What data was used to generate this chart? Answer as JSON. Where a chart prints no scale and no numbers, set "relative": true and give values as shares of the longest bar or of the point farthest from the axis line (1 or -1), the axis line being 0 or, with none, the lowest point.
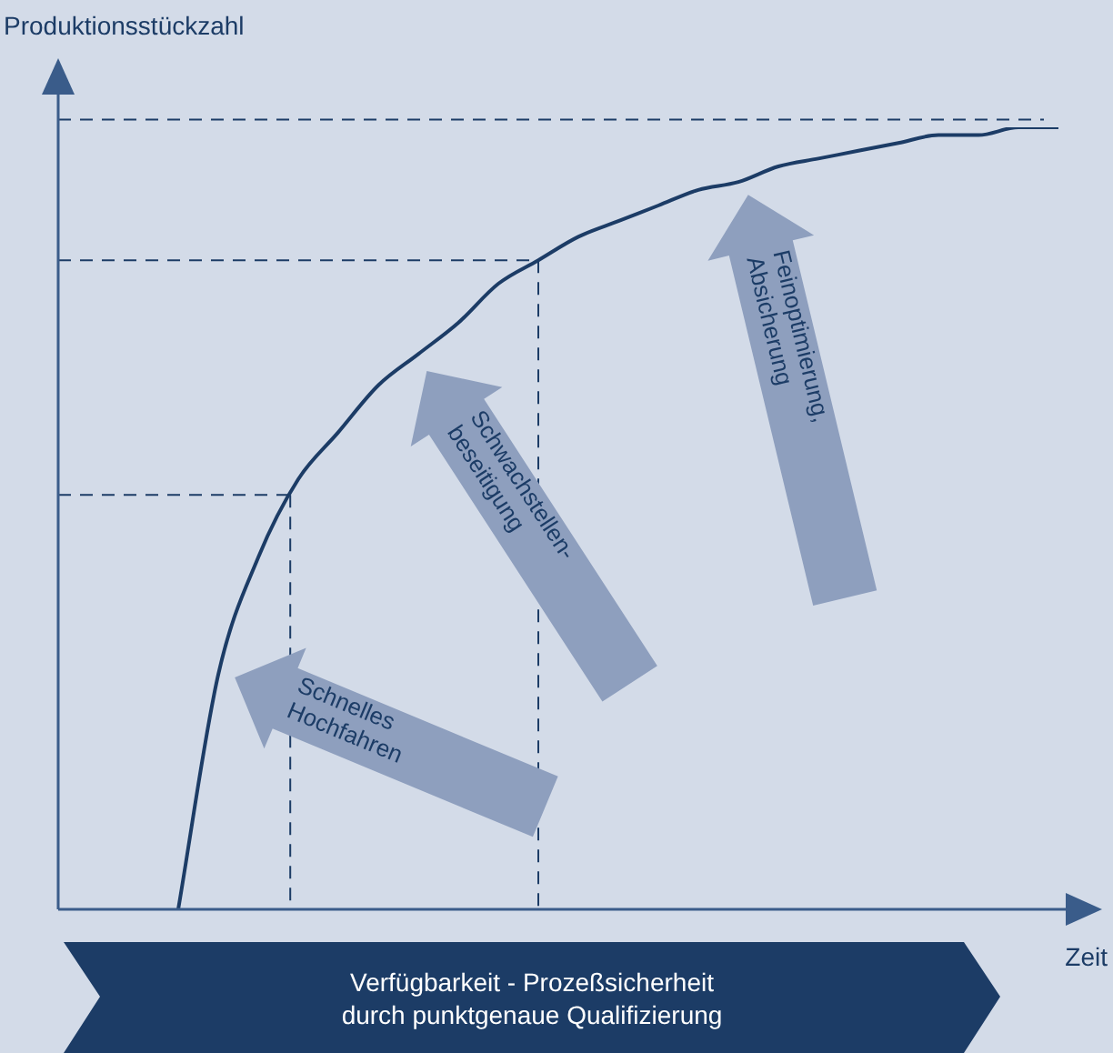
{
  "chart_data": {
    "type": "line",
    "relative": true,
    "ylabel": "Produktionsstückzahl",
    "xlabel": "Zeit",
    "categories": [
      null,
      null,
      null,
      null,
      null,
      null,
      null,
      null,
      null,
      null,
      null,
      null,
      null,
      null,
      null,
      null,
      null,
      null,
      null,
      null,
      null,
      null,
      null,
      null,
      null,
      null
    ],
    "values": [
      null,
      null,
      null,
      0,
      0.3,
      0.45,
      0.55,
      0.61,
      0.67,
      0.71,
      0.75,
      0.8,
      0.83,
      0.86,
      0.88,
      0.9,
      0.92,
      0.93,
      0.95,
      0.96,
      0.97,
      0.98,
      0.99,
      0.99,
      1.0,
      1.0
    ],
    "color": "#1c3c66",
    "marker": "none",
    "line_style": "solid",
    "legend": false,
    "ref_lines": [
      {
        "axis": "y",
        "value": 1.01,
        "line_style": "dashed",
        "color": "#1c3c66"
      },
      {
        "axis": "y",
        "value": 0.83,
        "line_style": "dashed",
        "color": "#1c3c66"
      },
      {
        "axis": "y",
        "value": 0.53,
        "line_style": "dashed",
        "color": "#1c3c66"
      }
    ],
    "annotations": [
      "Schnelles Hochfahren",
      "Schwachstellen-beseitigung",
      "Feinoptimierung, Absicherung",
      "Verfügbarkeit - Prozeßsicherheit durch punktgenaue Qualifizierung"
    ]
  }
}
